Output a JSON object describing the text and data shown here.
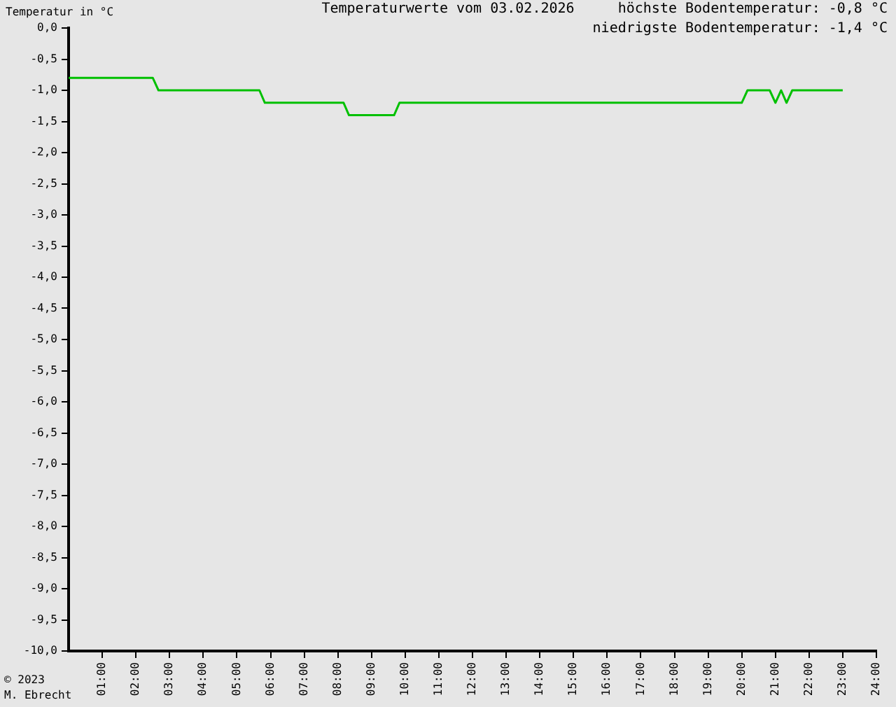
{
  "chart_data": {
    "type": "line",
    "title": "Temperaturwerte vom 03.02.2026",
    "ylabel": "Temperatur in °C",
    "annotations": [
      "höchste Bodentemperatur: -0,8 °C",
      "niedrigste Bodentemperatur: -1,4 °C",
      "© 2023",
      "M. Ebrecht"
    ],
    "x": [
      0,
      2.5,
      2.67,
      5.67,
      5.83,
      8.17,
      8.33,
      9.67,
      9.83,
      20.0,
      20.17,
      20.83,
      21.0,
      21.17,
      21.33,
      21.5,
      23.0
    ],
    "series": [
      {
        "color": "#00c000",
        "values": [
          -0.8,
          -0.8,
          -1.0,
          -1.0,
          -1.2,
          -1.2,
          -1.4,
          -1.4,
          -1.2,
          -1.2,
          -1.0,
          -1.0,
          -1.2,
          -1.0,
          -1.2,
          -1.0,
          -1.0
        ]
      }
    ],
    "xlim": [
      0,
      24
    ],
    "xticks": [
      {
        "value": 1,
        "label": "01:00"
      },
      {
        "value": 2,
        "label": "02:00"
      },
      {
        "value": 3,
        "label": "03:00"
      },
      {
        "value": 4,
        "label": "04:00"
      },
      {
        "value": 5,
        "label": "05:00"
      },
      {
        "value": 6,
        "label": "06:00"
      },
      {
        "value": 7,
        "label": "07:00"
      },
      {
        "value": 8,
        "label": "08:00"
      },
      {
        "value": 9,
        "label": "09:00"
      },
      {
        "value": 10,
        "label": "10:00"
      },
      {
        "value": 11,
        "label": "11:00"
      },
      {
        "value": 12,
        "label": "12:00"
      },
      {
        "value": 13,
        "label": "13:00"
      },
      {
        "value": 14,
        "label": "14:00"
      },
      {
        "value": 15,
        "label": "15:00"
      },
      {
        "value": 16,
        "label": "16:00"
      },
      {
        "value": 17,
        "label": "17:00"
      },
      {
        "value": 18,
        "label": "18:00"
      },
      {
        "value": 19,
        "label": "19:00"
      },
      {
        "value": 20,
        "label": "20:00"
      },
      {
        "value": 21,
        "label": "21:00"
      },
      {
        "value": 22,
        "label": "22:00"
      },
      {
        "value": 23,
        "label": "23:00"
      },
      {
        "value": 24,
        "label": "24:00"
      }
    ],
    "ylim": [
      -10,
      0
    ],
    "yticks": [
      {
        "value": 0,
        "label": "0,0"
      },
      {
        "value": -0.5,
        "label": "-0,5"
      },
      {
        "value": -1,
        "label": "-1,0"
      },
      {
        "value": -1.5,
        "label": "-1,5"
      },
      {
        "value": -2,
        "label": "-2,0"
      },
      {
        "value": -2.5,
        "label": "-2,5"
      },
      {
        "value": -3,
        "label": "-3,0"
      },
      {
        "value": -3.5,
        "label": "-3,5"
      },
      {
        "value": -4,
        "label": "-4,0"
      },
      {
        "value": -4.5,
        "label": "-4,5"
      },
      {
        "value": -5,
        "label": "-5,0"
      },
      {
        "value": -5.5,
        "label": "-5,5"
      },
      {
        "value": -6,
        "label": "-6,0"
      },
      {
        "value": -6.5,
        "label": "-6,5"
      },
      {
        "value": -7,
        "label": "-7,0"
      },
      {
        "value": -7.5,
        "label": "-7,5"
      },
      {
        "value": -8,
        "label": "-8,0"
      },
      {
        "value": -8.5,
        "label": "-8,5"
      },
      {
        "value": -9,
        "label": "-9,0"
      },
      {
        "value": -9.5,
        "label": "-9,5"
      },
      {
        "value": -10,
        "label": "-10,0"
      }
    ],
    "grid": false,
    "legend": false,
    "marker": "none",
    "line_style": "solid"
  }
}
